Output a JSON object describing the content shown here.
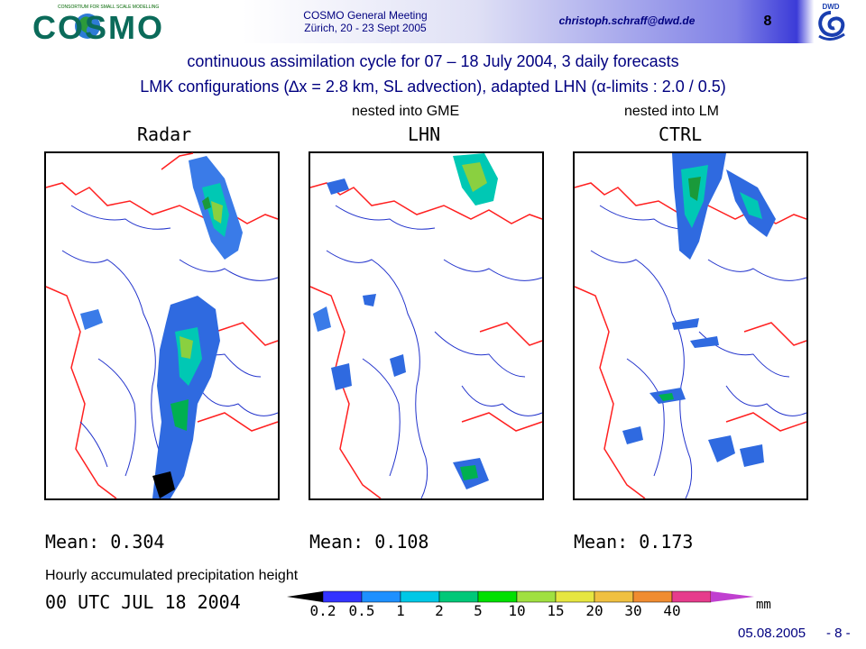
{
  "header": {
    "logo_text": "COSMO",
    "logo_subtitle": "CONSORTIUM FOR SMALL SCALE MODELLING",
    "meeting_line1": "COSMO General Meeting",
    "meeting_line2": "Zürich, 20 - 23 Sept 2005",
    "email": "christoph.schraff@dwd.de",
    "slide_number": "8",
    "dwd_logo_text": "DWD"
  },
  "title": {
    "line1": "continuous assimilation cycle for  07 – 18 July 2004,  3 daily forecasts",
    "line2": "LMK configurations  (∆x = 2.8 km, SL advection), adapted LHN  (α-limits : 2.0 / 0.5)"
  },
  "panels": [
    {
      "label": "Radar",
      "nested": "",
      "mean": "Mean: 0.304"
    },
    {
      "label": "LHN",
      "nested": "nested into GME",
      "mean": "Mean: 0.108"
    },
    {
      "label": "CTRL",
      "nested": "nested into LM",
      "mean": "Mean: 0.173"
    }
  ],
  "legend": {
    "caption": "Hourly accumulated precipitation height",
    "time": "00 UTC JUL 18 2004",
    "unit": "mm",
    "ticks": [
      "0.2",
      "0.5",
      "1",
      "2",
      "5",
      "10",
      "15",
      "20",
      "30",
      "40"
    ],
    "colors": [
      "#000000",
      "#3333ff",
      "#1e90ff",
      "#00c8e6",
      "#00c878",
      "#00e000",
      "#a0e040",
      "#e6e640",
      "#f0c040",
      "#f08c30",
      "#e63c8c",
      "#c040d0"
    ]
  },
  "footer": {
    "date": "05.08.2005",
    "page": "- 8 -"
  }
}
